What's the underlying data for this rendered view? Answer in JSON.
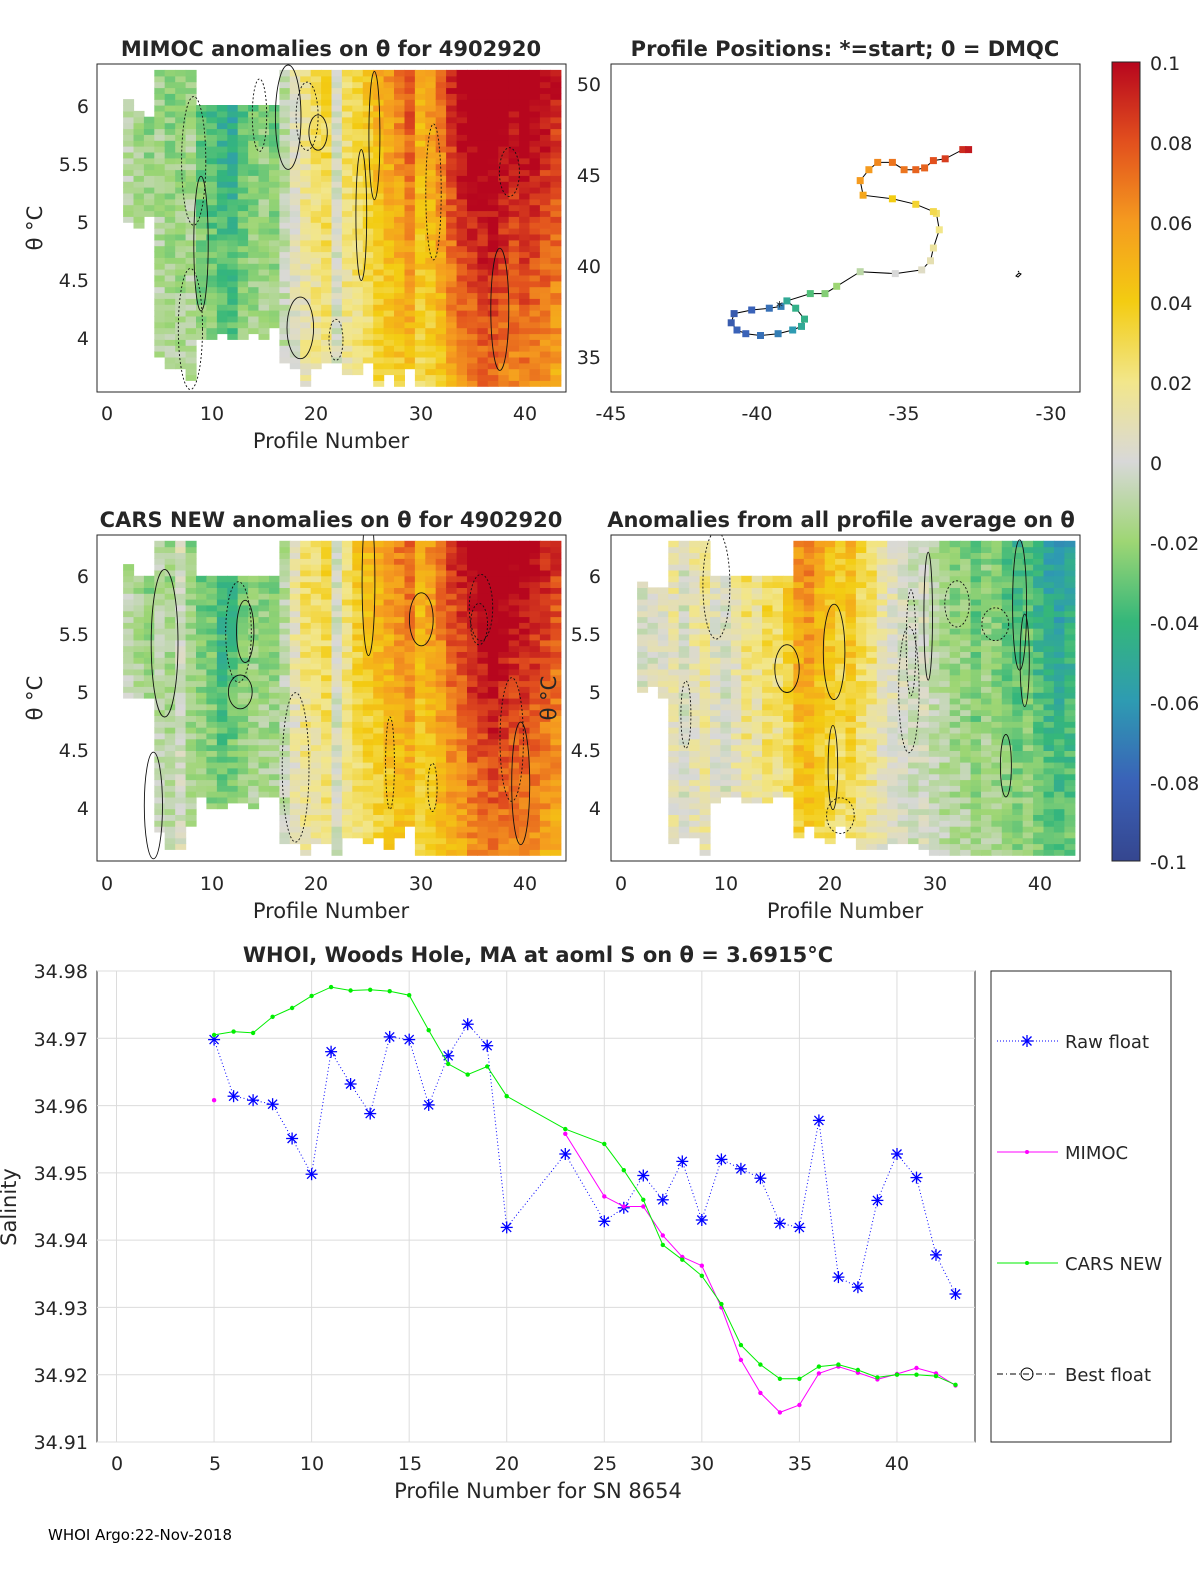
{
  "figure": {
    "footer": "WHOI Argo:22-Nov-2018"
  },
  "panels": {
    "mimoc": {
      "title": "MIMOC anomalies on θ  for 4902920",
      "ylabel": "θ °C",
      "xlabel": "Profile Number",
      "xticks": [
        "0",
        "10",
        "20",
        "30",
        "40"
      ],
      "yticks": [
        "6",
        "5.5",
        "5",
        "4.5",
        "4"
      ]
    },
    "positions": {
      "title": "Profile Positions: *=start; 0 = DMQC",
      "xticks": [
        "-45",
        "-40",
        "-35",
        "-30"
      ],
      "yticks": [
        "50",
        "45",
        "40",
        "35"
      ]
    },
    "cars": {
      "title": "CARS NEW anomalies on θ for 4902920",
      "ylabel": "θ °C",
      "xlabel": "Profile Number",
      "xticks": [
        "0",
        "10",
        "20",
        "30",
        "40"
      ],
      "yticks": [
        "6",
        "5.5",
        "5",
        "4.5",
        "4"
      ]
    },
    "allavg": {
      "title": "Anomalies from all profile average on θ",
      "ylabel": "θ °C",
      "xlabel": "Profile Number",
      "xticks": [
        "0",
        "10",
        "20",
        "30",
        "40"
      ],
      "yticks": [
        "6",
        "5.5",
        "5",
        "4.5",
        "4"
      ]
    },
    "colorbar": {
      "ticks": [
        "0.1",
        "0.08",
        "0.06",
        "0.04",
        "0.02",
        "0",
        "-0.02",
        "-0.04",
        "-0.06",
        "-0.08",
        "-0.1"
      ]
    }
  },
  "chart_data": [
    {
      "type": "heatmap",
      "title": "MIMOC anomalies on θ  for 4902920",
      "xlabel": "Profile Number",
      "ylabel": "θ °C",
      "xlim": [
        -1,
        44
      ],
      "ylim": [
        3.55,
        6.35
      ],
      "clim": [
        -0.1,
        0.1
      ],
      "description_profiles": [
        2,
        3,
        4,
        5,
        6,
        7,
        8,
        9,
        10,
        11,
        12,
        13,
        14,
        15,
        16,
        17,
        18,
        19,
        20,
        21,
        22,
        23,
        24,
        25,
        26,
        27,
        28,
        29,
        30,
        31,
        32,
        33,
        34,
        35,
        36,
        37,
        38,
        39,
        40,
        41,
        42,
        43
      ],
      "column_anomaly_mean": [
        -0.01,
        -0.015,
        -0.02,
        -0.015,
        -0.02,
        -0.02,
        -0.015,
        -0.03,
        -0.035,
        -0.04,
        -0.045,
        -0.03,
        -0.025,
        -0.02,
        -0.025,
        -0.01,
        0.005,
        0.015,
        0.02,
        0.025,
        0.0,
        0.02,
        0.025,
        0.03,
        0.04,
        0.045,
        0.05,
        0.06,
        0.04,
        0.045,
        0.055,
        0.07,
        0.08,
        0.085,
        0.09,
        0.09,
        0.085,
        0.08,
        0.085,
        0.08,
        0.075,
        0.07
      ]
    },
    {
      "type": "scatter",
      "title": "Profile Positions: *=start; 0 = DMQC",
      "xlim": [
        -45,
        -29
      ],
      "ylim": [
        33,
        51
      ],
      "x": [
        -39.2,
        -39.6,
        -40.2,
        -40.8,
        -40.9,
        -40.7,
        -40.4,
        -39.9,
        -39.3,
        -38.8,
        -38.5,
        -38.4,
        -38.7,
        -39.0,
        -38.2,
        -37.7,
        -37.3,
        -36.5,
        -35.3,
        -34.4,
        -34.1,
        -34.0,
        -33.8,
        -33.9,
        -34.0,
        -34.6,
        -35.4,
        -36.4,
        -36.5,
        -36.2,
        -35.9,
        -35.4,
        -35.0,
        -34.6,
        -34.3,
        -34.0,
        -33.6,
        -33.0,
        -32.8
      ],
      "y": [
        37.7,
        37.6,
        37.5,
        37.3,
        36.8,
        36.4,
        36.2,
        36.1,
        36.2,
        36.4,
        36.6,
        37.0,
        37.6,
        38.0,
        38.4,
        38.4,
        38.8,
        39.6,
        39.5,
        39.7,
        40.2,
        40.9,
        41.9,
        42.8,
        42.9,
        43.3,
        43.6,
        43.8,
        44.6,
        45.2,
        45.6,
        45.6,
        45.2,
        45.2,
        45.3,
        45.7,
        45.8,
        46.3,
        46.3
      ],
      "c": [
        -0.07,
        -0.075,
        -0.08,
        -0.085,
        -0.085,
        -0.08,
        -0.08,
        -0.075,
        -0.07,
        -0.06,
        -0.05,
        -0.045,
        -0.045,
        -0.05,
        -0.035,
        -0.025,
        -0.02,
        -0.01,
        0.0,
        0.005,
        0.01,
        0.015,
        0.02,
        0.025,
        0.03,
        0.035,
        0.04,
        0.055,
        0.06,
        0.06,
        0.065,
        0.07,
        0.07,
        0.075,
        0.075,
        0.08,
        0.085,
        0.09,
        0.095
      ]
    },
    {
      "type": "heatmap",
      "title": "CARS NEW anomalies on θ for 4902920",
      "xlabel": "Profile Number",
      "ylabel": "θ °C",
      "xlim": [
        -1,
        44
      ],
      "ylim": [
        3.55,
        6.35
      ],
      "clim": [
        -0.1,
        0.1
      ],
      "description_profiles": [
        2,
        3,
        4,
        5,
        6,
        7,
        8,
        9,
        10,
        11,
        12,
        13,
        14,
        15,
        16,
        17,
        18,
        19,
        20,
        21,
        22,
        23,
        24,
        25,
        26,
        27,
        28,
        29,
        30,
        31,
        32,
        33,
        34,
        35,
        36,
        37,
        38,
        39,
        40,
        41,
        42,
        43
      ],
      "column_anomaly_mean": [
        -0.01,
        -0.015,
        -0.02,
        -0.01,
        -0.015,
        0.0,
        -0.02,
        -0.025,
        -0.03,
        -0.04,
        -0.035,
        -0.025,
        -0.02,
        -0.02,
        -0.02,
        -0.01,
        0.01,
        0.02,
        0.02,
        0.025,
        0.0,
        0.02,
        0.03,
        0.035,
        0.04,
        0.045,
        0.05,
        0.055,
        0.04,
        0.045,
        0.055,
        0.065,
        0.07,
        0.08,
        0.085,
        0.09,
        0.085,
        0.08,
        0.08,
        0.075,
        0.07,
        0.065
      ]
    },
    {
      "type": "heatmap",
      "title": "Anomalies from all profile average on θ",
      "xlabel": "Profile Number",
      "ylabel": "θ °C",
      "xlim": [
        -1,
        44
      ],
      "ylim": [
        3.55,
        6.35
      ],
      "clim": [
        -0.1,
        0.1
      ],
      "description_profiles": [
        2,
        3,
        4,
        5,
        6,
        7,
        8,
        9,
        10,
        11,
        12,
        13,
        14,
        15,
        16,
        17,
        18,
        19,
        20,
        21,
        22,
        23,
        24,
        25,
        26,
        27,
        28,
        29,
        30,
        31,
        32,
        33,
        34,
        35,
        36,
        37,
        38,
        39,
        40,
        41,
        42,
        43
      ],
      "column_anomaly_mean": [
        0.0,
        0.0,
        0.005,
        0.01,
        0.0,
        0.01,
        0.015,
        0.005,
        0.0,
        0.01,
        0.02,
        0.015,
        0.025,
        0.02,
        0.03,
        0.045,
        0.05,
        0.04,
        0.035,
        0.03,
        0.035,
        0.025,
        0.02,
        0.01,
        0.005,
        0.0,
        -0.005,
        0.0,
        -0.01,
        -0.015,
        -0.02,
        -0.02,
        -0.03,
        -0.02,
        -0.025,
        -0.03,
        -0.035,
        -0.03,
        -0.04,
        -0.045,
        -0.05,
        -0.045
      ]
    },
    {
      "type": "line",
      "title": "WHOI, Woods Hole, MA at aoml S on θ = 3.6915°C",
      "xlabel": "Profile Number for SN 8654",
      "ylabel": "Salinity",
      "xlim": [
        -1,
        44
      ],
      "ylim": [
        34.91,
        34.98
      ],
      "xticks": [
        "0",
        "5",
        "10",
        "15",
        "20",
        "25",
        "30",
        "35",
        "40"
      ],
      "yticks": [
        "34.98",
        "34.97",
        "34.96",
        "34.95",
        "34.94",
        "34.93",
        "34.92",
        "34.91"
      ],
      "grid": true,
      "legend_position": "outside-right",
      "series": [
        {
          "name": "Raw float",
          "color": "#0000ff",
          "style": "dotted-star",
          "x": [
            5,
            6,
            7,
            8,
            9,
            10,
            11,
            12,
            13,
            14,
            15,
            16,
            17,
            18,
            19,
            20,
            23,
            25,
            26,
            27,
            28,
            29,
            30,
            31,
            32,
            33,
            34,
            35,
            36,
            37,
            38,
            39,
            40,
            41,
            42,
            43
          ],
          "y": [
            34.9698,
            34.9614,
            34.9608,
            34.9602,
            34.9551,
            34.9498,
            34.968,
            34.9632,
            34.9588,
            34.9702,
            34.9698,
            34.9601,
            34.9674,
            34.9721,
            34.9689,
            34.9419,
            34.9528,
            34.9428,
            34.9448,
            34.9496,
            34.946,
            34.9517,
            34.943,
            34.952,
            34.9506,
            34.9492,
            34.9425,
            34.9419,
            34.9578,
            34.9345,
            34.933,
            34.9459,
            34.9528,
            34.9493,
            34.9378,
            34.932
          ]
        },
        {
          "name": "MIMOC",
          "color": "#ff00ff",
          "style": "solid-dot",
          "x": [
            5,
            23,
            25,
            26,
            27,
            28,
            29,
            30,
            31,
            32,
            33,
            34,
            35,
            36,
            37,
            38,
            39,
            40,
            41,
            42,
            43
          ],
          "y": [
            34.9608,
            34.9558,
            34.9465,
            34.945,
            34.945,
            34.9407,
            34.9375,
            34.9362,
            34.93,
            34.9222,
            34.9173,
            34.9144,
            34.9155,
            34.9202,
            34.9212,
            34.9203,
            34.9193,
            34.9201,
            34.921,
            34.9202,
            34.9184
          ]
        },
        {
          "name": "CARS NEW",
          "color": "#00ee00",
          "style": "solid-dot",
          "x": [
            5,
            6,
            7,
            8,
            9,
            10,
            11,
            12,
            13,
            14,
            15,
            16,
            17,
            18,
            19,
            20,
            23,
            25,
            26,
            27,
            28,
            29,
            30,
            31,
            32,
            33,
            34,
            35,
            36,
            37,
            38,
            39,
            40,
            41,
            42,
            43
          ],
          "y": [
            34.9705,
            34.971,
            34.9708,
            34.9732,
            34.9745,
            34.9763,
            34.9776,
            34.9771,
            34.9772,
            34.977,
            34.9764,
            34.9712,
            34.9662,
            34.9646,
            34.9658,
            34.9614,
            34.9565,
            34.9543,
            34.9504,
            34.946,
            34.9393,
            34.9371,
            34.9347,
            34.9305,
            34.9244,
            34.9215,
            34.9194,
            34.9194,
            34.9212,
            34.9215,
            34.9207,
            34.9196,
            34.92,
            34.92,
            34.9198,
            34.9185
          ]
        },
        {
          "name": "Best float",
          "color": "#000000",
          "style": "dashdot-circle",
          "x": [],
          "y": []
        }
      ]
    }
  ]
}
